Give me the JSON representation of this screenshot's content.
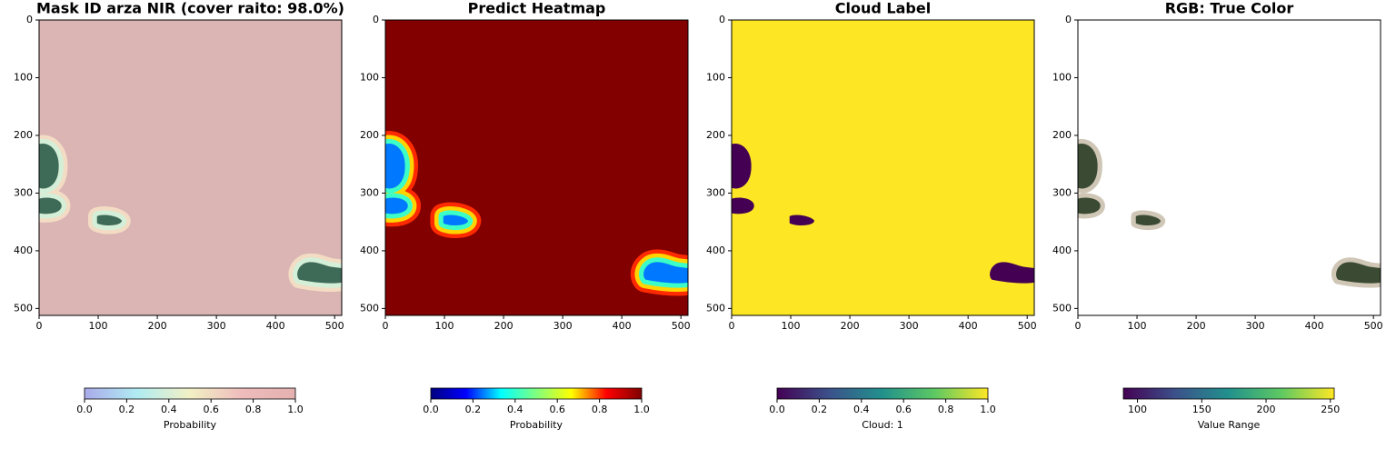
{
  "chart_data": [
    {
      "type": "image",
      "title": "Mask ID arza NIR (cover raito: 98.0%)",
      "xlim": [
        0,
        512
      ],
      "ylim": [
        512,
        0
      ],
      "xticks": [
        0,
        100,
        200,
        300,
        400,
        500
      ],
      "yticks": [
        0,
        100,
        200,
        300,
        400,
        500
      ],
      "background": "#dbb4b4",
      "halo": [
        "#f3dcc4",
        "#d4efd8"
      ],
      "color": "#3e6a58",
      "colorbar": {
        "label": "Probability",
        "lim": [
          0,
          1
        ],
        "colors": [
          "#aaaaea",
          "#b0ecf2",
          "#f2f0c4",
          "#eebcbc",
          "#e4b0b0"
        ],
        "ticks": [
          {
            "value": 0,
            "label": "0.0"
          },
          {
            "value": 0.2,
            "label": "0.2"
          },
          {
            "value": 0.4,
            "label": "0.4"
          },
          {
            "value": 0.6,
            "label": "0.6"
          },
          {
            "value": 0.8,
            "label": "0.8"
          },
          {
            "value": 1,
            "label": "1.0"
          }
        ]
      }
    },
    {
      "type": "image",
      "title": "Predict Heatmap",
      "xlim": [
        0,
        512
      ],
      "ylim": [
        512,
        0
      ],
      "xticks": [
        0,
        100,
        200,
        300,
        400,
        500
      ],
      "yticks": [
        0,
        100,
        200,
        300,
        400,
        500
      ],
      "background": "#820000",
      "halo": [
        "#ff2a00",
        "#ffd400",
        "#3cffc8"
      ],
      "color": "#0078ff",
      "colorbar": {
        "label": "Probability",
        "lim": [
          0,
          1
        ],
        "colors": [
          "#00007f",
          "#0000ff",
          "#00ffff",
          "#7fff7f",
          "#ffff00",
          "#ff0000",
          "#7f0000"
        ],
        "ticks": [
          {
            "value": 0,
            "label": "0.0"
          },
          {
            "value": 0.2,
            "label": "0.2"
          },
          {
            "value": 0.4,
            "label": "0.4"
          },
          {
            "value": 0.6,
            "label": "0.6"
          },
          {
            "value": 0.8,
            "label": "0.8"
          },
          {
            "value": 1,
            "label": "1.0"
          }
        ]
      }
    },
    {
      "type": "image",
      "title": "Cloud Label",
      "xlim": [
        0,
        512
      ],
      "ylim": [
        512,
        0
      ],
      "xticks": [
        0,
        100,
        200,
        300,
        400,
        500
      ],
      "yticks": [
        0,
        100,
        200,
        300,
        400,
        500
      ],
      "background": "#fde725",
      "halo": [],
      "color": "#440154",
      "colorbar": {
        "label": "Cloud: 1",
        "lim": [
          0,
          1
        ],
        "colors": [
          "#440154",
          "#3b528b",
          "#21918c",
          "#5ec962",
          "#fde725"
        ],
        "ticks": [
          {
            "value": 0,
            "label": "0.0"
          },
          {
            "value": 0.2,
            "label": "0.2"
          },
          {
            "value": 0.4,
            "label": "0.4"
          },
          {
            "value": 0.6,
            "label": "0.6"
          },
          {
            "value": 0.8,
            "label": "0.8"
          },
          {
            "value": 1,
            "label": "1.0"
          }
        ]
      }
    },
    {
      "type": "image",
      "title": "RGB: True Color",
      "xlim": [
        0,
        512
      ],
      "ylim": [
        512,
        0
      ],
      "xticks": [
        0,
        100,
        200,
        300,
        400,
        500
      ],
      "yticks": [
        0,
        100,
        200,
        300,
        400,
        500
      ],
      "background": "#ffffff",
      "halo": [
        "#cfc6b6"
      ],
      "color": "#3b4a32",
      "colorbar": {
        "label": "Value Range",
        "lim": [
          89,
          253
        ],
        "colors": [
          "#440154",
          "#3b528b",
          "#21918c",
          "#5ec962",
          "#fde725"
        ],
        "ticks": [
          100,
          150,
          200,
          250
        ]
      }
    }
  ]
}
